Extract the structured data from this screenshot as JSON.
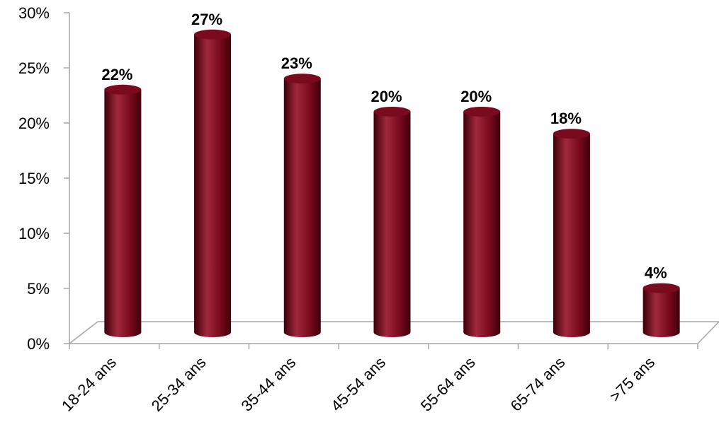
{
  "chart_data": {
    "type": "bar",
    "style": "3d-cylinder",
    "categories": [
      "18-24 ans",
      "25-34 ans",
      "35-44 ans",
      "45-54 ans",
      "55-64 ans",
      "65-74 ans",
      ">75 ans"
    ],
    "series": [
      {
        "values": [
          22,
          27,
          23,
          20,
          20,
          18,
          4
        ],
        "labels": [
          "22%",
          "27%",
          "23%",
          "20%",
          "20%",
          "18%",
          "4%"
        ]
      }
    ],
    "title": "",
    "xlabel": "",
    "ylabel": "",
    "ylim": [
      0,
      30
    ],
    "yticks": [
      "0%",
      "5%",
      "10%",
      "15%",
      "20%",
      "25%",
      "30%"
    ],
    "grid": false,
    "legend": "none",
    "colors": {
      "bar": "#7a0a1e",
      "bar_dark": "#3e0008",
      "bar_highlight": "#a0283c",
      "axis": "#a6a6a6"
    }
  }
}
